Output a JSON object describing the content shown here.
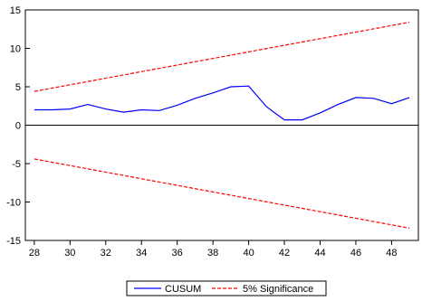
{
  "chart_data": {
    "type": "line",
    "title": "",
    "xlabel": "",
    "ylabel": "",
    "xlim": [
      27.5,
      49.5
    ],
    "ylim": [
      -15,
      15
    ],
    "x_ticks": [
      "28",
      "30",
      "32",
      "34",
      "36",
      "38",
      "40",
      "42",
      "44",
      "46",
      "48"
    ],
    "y_ticks": [
      "15",
      "10",
      "5",
      "0",
      "-5",
      "-10",
      "-15"
    ],
    "grid": false,
    "legend_position": "bottom-center",
    "series": [
      {
        "name": "CUSUM",
        "color": "#0000ff",
        "style": "solid",
        "x": [
          28,
          29,
          30,
          31,
          32,
          33,
          34,
          35,
          36,
          37,
          38,
          39,
          40,
          41,
          42,
          43,
          44,
          45,
          46,
          47,
          48,
          49
        ],
        "y": [
          2.0,
          2.0,
          2.1,
          2.7,
          2.1,
          1.7,
          2.0,
          1.9,
          2.6,
          3.5,
          4.2,
          5.0,
          5.1,
          2.4,
          0.7,
          0.7,
          1.6,
          2.7,
          3.6,
          3.5,
          2.8,
          3.6
        ]
      },
      {
        "name": "5% Significance",
        "color": "#ff0000",
        "style": "dashed",
        "x": [
          28,
          49
        ],
        "y": [
          4.4,
          13.4
        ]
      },
      {
        "name": "",
        "color": "#ff0000",
        "style": "dashed",
        "x": [
          28,
          49
        ],
        "y": [
          -4.4,
          -13.4
        ]
      }
    ],
    "legend": [
      {
        "label": "CUSUM",
        "color": "#0000ff",
        "style": "solid"
      },
      {
        "label": "5% Significance",
        "color": "#ff0000",
        "style": "dashed"
      }
    ]
  }
}
